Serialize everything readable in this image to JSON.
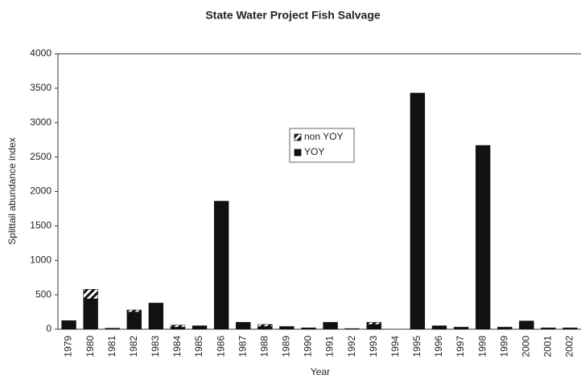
{
  "chart_data": {
    "type": "stacked-bar",
    "title": "State Water Project Fish Salvage",
    "x_label": "Year",
    "y_label": "Splittail abundance index",
    "categories": [
      "1979",
      "1980",
      "1981",
      "1982",
      "1983",
      "1984",
      "1985",
      "1986",
      "1987",
      "1988",
      "1989",
      "1990",
      "1991",
      "1992",
      "1993",
      "1994",
      "1995",
      "1996",
      "1997",
      "1998",
      "1999",
      "2000",
      "2001",
      "2002"
    ],
    "series": [
      {
        "name": "non YOY",
        "color": "#111111",
        "pattern": "hatch",
        "values": [
          5,
          140,
          0,
          30,
          0,
          30,
          0,
          0,
          0,
          30,
          0,
          0,
          0,
          0,
          30,
          0,
          0,
          0,
          0,
          0,
          0,
          0,
          0,
          0
        ]
      },
      {
        "name": "YOY",
        "color": "#111111",
        "pattern": "solid",
        "values": [
          120,
          440,
          15,
          250,
          380,
          30,
          50,
          1860,
          100,
          40,
          40,
          20,
          100,
          10,
          70,
          0,
          3430,
          50,
          30,
          2670,
          30,
          120,
          20,
          20
        ]
      }
    ],
    "ylim": [
      0,
      4000
    ],
    "yticks": [
      0,
      500,
      1000,
      1500,
      2000,
      2500,
      3000,
      3500,
      4000
    ]
  }
}
